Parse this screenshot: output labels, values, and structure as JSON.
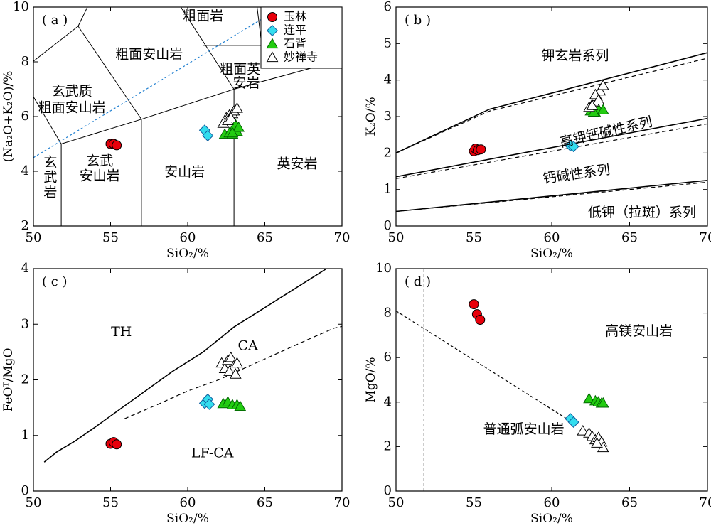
{
  "legend_title": "",
  "series_styles": {
    "玉林": {
      "marker": "circle",
      "fill": "#e8000b",
      "stroke": "#000000"
    },
    "连平": {
      "marker": "diamond",
      "fill": "#33ddee",
      "stroke": "#1060a0"
    },
    "石背": {
      "marker": "triangle",
      "fill": "#22cc11",
      "stroke": "#006600"
    },
    "妙禅寺": {
      "marker": "triangle",
      "fill": "#ffffff",
      "stroke": "#000000"
    }
  },
  "chart_data": [
    {
      "panel_label": "( a )",
      "type": "scatter",
      "xlabel": "SiO₂/%",
      "ylabel": "(Na₂O+K₂O)/%",
      "xlim": [
        50,
        70
      ],
      "ylim": [
        2,
        10
      ],
      "xticks": [
        50,
        55,
        60,
        65,
        70
      ],
      "yticks": [
        2,
        4,
        6,
        8,
        10
      ],
      "grid": false,
      "legend": {
        "position": "top-right",
        "entries": [
          "玉林",
          "连平",
          "石背",
          "妙禅寺"
        ]
      },
      "field_lines": [
        [
          [
            50,
            5
          ],
          [
            51.8,
            5
          ]
        ],
        [
          [
            51.8,
            1.5
          ],
          [
            51.8,
            5
          ]
        ],
        [
          [
            51.8,
            5
          ],
          [
            57,
            5.9
          ]
        ],
        [
          [
            57,
            1.5
          ],
          [
            57,
            5.9
          ]
        ],
        [
          [
            57,
            5.9
          ],
          [
            63,
            7
          ]
        ],
        [
          [
            63,
            1.5
          ],
          [
            63,
            7
          ]
        ],
        [
          [
            63,
            7
          ],
          [
            69.5,
            8
          ]
        ],
        [
          [
            51.8,
            5
          ],
          [
            49.5,
            7.2
          ]
        ],
        [
          [
            57,
            5.9
          ],
          [
            52.9,
            9.3
          ]
        ],
        [
          [
            52.9,
            9.3
          ],
          [
            49.5,
            7.8
          ]
        ],
        [
          [
            52.9,
            9.3
          ],
          [
            53.5,
            10
          ]
        ],
        [
          [
            63,
            7
          ],
          [
            57.6,
            11.7
          ]
        ],
        [
          [
            61,
            8.6
          ],
          [
            64.8,
            8.6
          ]
        ],
        [
          [
            64.8,
            8.6
          ],
          [
            64.5,
            10
          ]
        ],
        [
          [
            64.8,
            8.6
          ],
          [
            69.5,
            8
          ]
        ],
        [
          [
            69.5,
            8
          ],
          [
            68.8,
            9.5
          ]
        ]
      ],
      "alkaline_divider": [
        [
          50,
          4.5
        ],
        [
          65.2,
          9.7
        ]
      ],
      "field_labels": [
        {
          "text": "粗面岩",
          "x": 61,
          "y": 9.65
        },
        {
          "text": "粗面安山岩",
          "x": 57.5,
          "y": 8.25
        },
        {
          "text": "粗面英",
          "x": 63.4,
          "y": 7.7
        },
        {
          "text": "安岩",
          "x": 63.8,
          "y": 7.2
        },
        {
          "text": "玄武质",
          "x": 52.5,
          "y": 6.9
        },
        {
          "text": "粗面安山岩",
          "x": 52.5,
          "y": 6.3
        },
        {
          "text": "玄",
          "x": 51.1,
          "y": 4.3
        },
        {
          "text": "武",
          "x": 51.1,
          "y": 3.75
        },
        {
          "text": "岩",
          "x": 51.1,
          "y": 3.2
        },
        {
          "text": "玄武",
          "x": 54.3,
          "y": 4.35
        },
        {
          "text": "安山岩",
          "x": 54.3,
          "y": 3.8
        },
        {
          "text": "安山岩",
          "x": 59.8,
          "y": 3.95
        },
        {
          "text": "英安岩",
          "x": 67.1,
          "y": 4.25
        }
      ],
      "series": [
        {
          "name": "玉林",
          "x": [
            55,
            55.2,
            55.4
          ],
          "y": [
            5,
            5,
            4.95
          ]
        },
        {
          "name": "连平",
          "x": [
            61.1,
            61.3
          ],
          "y": [
            5.5,
            5.3
          ]
        },
        {
          "name": "石背",
          "x": [
            62.4,
            62.7,
            62.9,
            63.1,
            63.2,
            63.3,
            62.9
          ],
          "y": [
            5.35,
            5.4,
            5.35,
            5.7,
            5.45,
            5.6,
            5.4
          ]
        },
        {
          "name": "妙禅寺",
          "x": [
            62.3,
            62.5,
            62.7,
            62.9,
            63,
            63.2,
            62.6,
            62.8
          ],
          "y": [
            5.75,
            5.95,
            6.05,
            6.1,
            6.2,
            6.3,
            5.85,
            5.95
          ]
        }
      ]
    },
    {
      "panel_label": "( b )",
      "type": "scatter",
      "xlabel": "SiO₂/%",
      "ylabel": "K₂O/%",
      "xlim": [
        50,
        70
      ],
      "ylim": [
        0,
        6
      ],
      "xticks": [
        50,
        55,
        60,
        65,
        70
      ],
      "yticks": [
        0,
        1,
        2,
        3,
        4,
        5,
        6
      ],
      "grid": false,
      "solid_lines": [
        [
          [
            50,
            2
          ],
          [
            56,
            3.2
          ],
          [
            70,
            4.75
          ]
        ],
        [
          [
            50,
            1.35
          ],
          [
            70,
            2.95
          ]
        ],
        [
          [
            50,
            0.4
          ],
          [
            70,
            1.25
          ]
        ]
      ],
      "dashed_lines": [
        [
          [
            50,
            2
          ],
          [
            56,
            3.15
          ],
          [
            70,
            4.6
          ]
        ],
        [
          [
            50,
            1.3
          ],
          [
            70,
            2.8
          ]
        ],
        [
          [
            50,
            0.4
          ],
          [
            70,
            1.2
          ]
        ]
      ],
      "field_labels": [
        {
          "text": "钾玄岩系列",
          "x": 61.5,
          "y": 4.65,
          "rotate": 0
        },
        {
          "text": "高钾钙碱性系列",
          "x": 63.5,
          "y": 2.55,
          "rotate": -13
        },
        {
          "text": "钙碱性系列",
          "x": 61.6,
          "y": 1.4,
          "rotate": -8
        },
        {
          "text": "低钾（拉斑）系列",
          "x": 65.8,
          "y": 0.35,
          "rotate": 0
        }
      ],
      "series": [
        {
          "name": "玉林",
          "x": [
            55,
            55.1,
            55.25,
            55.45
          ],
          "y": [
            2.05,
            2.12,
            2.08,
            2.1
          ]
        },
        {
          "name": "连平",
          "x": [
            61.2,
            61.4
          ],
          "y": [
            2.2,
            2.18
          ]
        },
        {
          "name": "石背",
          "x": [
            62.5,
            62.8,
            63,
            63.3,
            62.7
          ],
          "y": [
            3.15,
            3.1,
            3.2,
            3.18,
            3.12
          ]
        },
        {
          "name": "妙禅寺",
          "x": [
            62.4,
            62.7,
            62.9,
            63.1,
            63.3,
            62.6,
            62.8,
            63
          ],
          "y": [
            3.25,
            3.4,
            3.55,
            3.7,
            3.85,
            3.3,
            3.6,
            3.45
          ]
        }
      ]
    },
    {
      "panel_label": "( c )",
      "type": "scatter",
      "xlabel": "SiO₂/%",
      "ylabel": "FeOᵀ/MgO",
      "xlim": [
        50,
        70
      ],
      "ylim": [
        0,
        4
      ],
      "xticks": [
        50,
        55,
        60,
        65,
        70
      ],
      "yticks": [
        0,
        1,
        2,
        3,
        4
      ],
      "grid": false,
      "solid_lines": [
        [
          [
            50.7,
            0.52
          ],
          [
            51.5,
            0.7
          ],
          [
            52.7,
            0.9
          ],
          [
            54,
            1.15
          ],
          [
            55.5,
            1.45
          ],
          [
            57,
            1.75
          ],
          [
            59,
            2.15
          ],
          [
            61,
            2.5
          ],
          [
            63,
            2.95
          ],
          [
            65,
            3.3
          ],
          [
            67,
            3.65
          ],
          [
            69,
            4.0
          ]
        ]
      ],
      "dashed_lines": [
        [
          [
            55.9,
            1.3
          ],
          [
            58,
            1.55
          ],
          [
            60,
            1.8
          ],
          [
            62,
            2.0
          ],
          [
            64,
            2.25
          ],
          [
            66,
            2.5
          ],
          [
            68,
            2.75
          ],
          [
            69.5,
            2.93
          ],
          [
            70,
            2.96
          ]
        ]
      ],
      "field_labels": [
        {
          "text": "TH",
          "x": 55.7,
          "y": 2.85
        },
        {
          "text": "CA",
          "x": 63.9,
          "y": 2.6
        },
        {
          "text": "LF-CA",
          "x": 61.6,
          "y": 0.67
        }
      ],
      "series": [
        {
          "name": "玉林",
          "x": [
            55,
            55.2,
            55.4
          ],
          "y": [
            0.85,
            0.88,
            0.84
          ]
        },
        {
          "name": "连平",
          "x": [
            61.1,
            61.3,
            61.4
          ],
          "y": [
            1.58,
            1.65,
            1.56
          ]
        },
        {
          "name": "石背",
          "x": [
            62.3,
            62.6,
            62.9,
            63.2,
            63.4
          ],
          "y": [
            1.57,
            1.6,
            1.55,
            1.55,
            1.52
          ]
        },
        {
          "name": "妙禅寺",
          "x": [
            62.2,
            62.4,
            62.6,
            62.8,
            63,
            63.2,
            62.7,
            63.1
          ],
          "y": [
            2.3,
            2.2,
            2.35,
            2.4,
            2.25,
            2.3,
            2.15,
            2.1
          ]
        }
      ]
    },
    {
      "panel_label": "( d )",
      "type": "scatter",
      "xlabel": "SiO₂/%",
      "ylabel": "MgO/%",
      "xlim": [
        50,
        70
      ],
      "ylim": [
        0,
        10
      ],
      "xticks": [
        50,
        55,
        60,
        65,
        70
      ],
      "yticks": [
        0,
        2,
        4,
        6,
        8,
        10
      ],
      "grid": false,
      "dashed_lines": [
        [
          [
            51.8,
            0
          ],
          [
            51.8,
            10
          ]
        ],
        [
          [
            50,
            8.1
          ],
          [
            61.3,
            3.1
          ]
        ]
      ],
      "field_labels": [
        {
          "text": "高镁安山岩",
          "x": 65.6,
          "y": 7.15
        },
        {
          "text": "普通弧安山岩",
          "x": 58.2,
          "y": 2.75
        }
      ],
      "series": [
        {
          "name": "玉林",
          "x": [
            55,
            55.2,
            55.4
          ],
          "y": [
            8.4,
            7.95,
            7.7
          ]
        },
        {
          "name": "连平",
          "x": [
            61.2,
            61.4
          ],
          "y": [
            3.25,
            3.1
          ]
        },
        {
          "name": "石背",
          "x": [
            62.4,
            62.8,
            63,
            63.2,
            63.3
          ],
          "y": [
            4.15,
            4.05,
            4.0,
            3.95,
            3.95
          ]
        },
        {
          "name": "妙禅寺",
          "x": [
            62,
            62.4,
            62.6,
            62.8,
            63,
            63.2,
            63.3,
            62.9
          ],
          "y": [
            2.7,
            2.6,
            2.45,
            2.3,
            2.4,
            2.2,
            1.95,
            2.15
          ]
        }
      ]
    }
  ]
}
